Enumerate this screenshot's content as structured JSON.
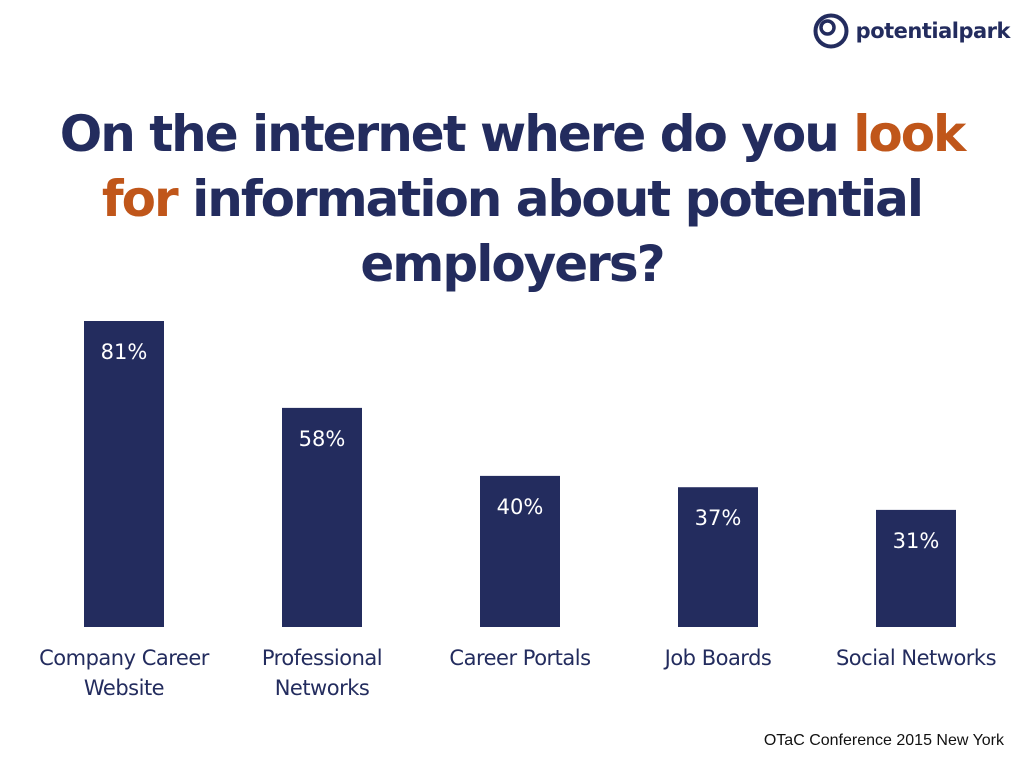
{
  "logo": {
    "text": "potentialpark",
    "icon": "potentialpark-logo-icon"
  },
  "title": {
    "part1": "On the internet where do you ",
    "accent": "look for",
    "part2": " information about potential employers?"
  },
  "footer": {
    "text": "OTaC Conference 2015 New York"
  },
  "colors": {
    "bar": "#232c5e",
    "accent": "#c0561a",
    "text": "#232c5e"
  },
  "chart_data": {
    "type": "bar",
    "categories": [
      [
        "Company Career",
        "Website"
      ],
      [
        "Professional",
        "Networks"
      ],
      [
        "Career Portals"
      ],
      [
        "Job Boards"
      ],
      [
        "Social Networks"
      ]
    ],
    "values": [
      81,
      58,
      40,
      37,
      31
    ],
    "value_labels": [
      "81%",
      "58%",
      "40%",
      "37%",
      "31%"
    ],
    "unit": "%",
    "title": "On the internet where do you look for information about potential employers?",
    "xlabel": "",
    "ylabel": "",
    "ylim": [
      0,
      81
    ],
    "grid": false,
    "legend": "none"
  }
}
